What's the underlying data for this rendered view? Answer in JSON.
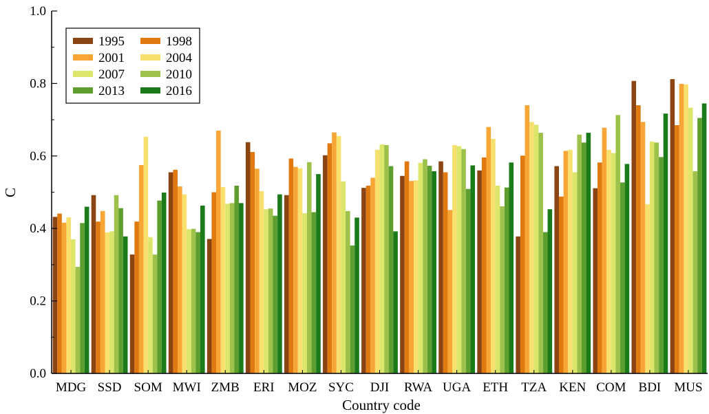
{
  "chart_data": {
    "type": "bar",
    "title": "",
    "xlabel": "Country code",
    "ylabel": "C",
    "ylim": [
      0.0,
      1.0
    ],
    "yticks": [
      "0.0",
      "0.2",
      "0.4",
      "0.6",
      "0.8",
      "1.0"
    ],
    "grid": false,
    "legend_position": "top-left",
    "categories": [
      "MDG",
      "SSD",
      "SOM",
      "MWI",
      "ZMB",
      "ERI",
      "MOZ",
      "SYC",
      "DJI",
      "RWA",
      "UGA",
      "ETH",
      "TZA",
      "KEN",
      "COM",
      "BDI",
      "MUS"
    ],
    "series": [
      {
        "name": "1995",
        "color": "#8B4513",
        "values": [
          0.432,
          0.492,
          0.328,
          0.555,
          0.371,
          0.638,
          0.492,
          0.602,
          0.512,
          0.545,
          0.585,
          0.56,
          0.378,
          0.572,
          0.511,
          0.807,
          0.812
        ]
      },
      {
        "name": "1998",
        "color": "#E07A10",
        "values": [
          0.441,
          0.419,
          0.419,
          0.562,
          0.5,
          0.611,
          0.593,
          0.635,
          0.518,
          0.585,
          0.555,
          0.596,
          0.601,
          0.488,
          0.582,
          0.74,
          0.685
        ]
      },
      {
        "name": "2001",
        "color": "#F7A535",
        "values": [
          0.416,
          0.448,
          0.575,
          0.516,
          0.67,
          0.565,
          0.57,
          0.665,
          0.54,
          0.531,
          0.451,
          0.68,
          0.74,
          0.614,
          0.678,
          0.694,
          0.799
        ]
      },
      {
        "name": "2004",
        "color": "#F8E06E",
        "values": [
          0.431,
          0.389,
          0.653,
          0.494,
          0.514,
          0.503,
          0.566,
          0.655,
          0.617,
          0.533,
          0.63,
          0.647,
          0.694,
          0.617,
          0.617,
          0.467,
          0.797
        ]
      },
      {
        "name": "2007",
        "color": "#DDE56B",
        "values": [
          0.37,
          0.392,
          0.376,
          0.398,
          0.468,
          0.453,
          0.442,
          0.53,
          0.632,
          0.581,
          0.627,
          0.518,
          0.686,
          0.555,
          0.608,
          0.64,
          0.733
        ]
      },
      {
        "name": "2010",
        "color": "#9DC24C",
        "values": [
          0.294,
          0.492,
          0.328,
          0.399,
          0.47,
          0.455,
          0.583,
          0.448,
          0.63,
          0.591,
          0.619,
          0.461,
          0.664,
          0.659,
          0.713,
          0.637,
          0.558
        ]
      },
      {
        "name": "2013",
        "color": "#5E9E2E",
        "values": [
          0.415,
          0.456,
          0.477,
          0.39,
          0.518,
          0.435,
          0.445,
          0.353,
          0.572,
          0.573,
          0.509,
          0.513,
          0.39,
          0.637,
          0.527,
          0.597,
          0.705
        ]
      },
      {
        "name": "2016",
        "color": "#1B7B1B",
        "values": [
          0.46,
          0.378,
          0.499,
          0.463,
          0.47,
          0.494,
          0.55,
          0.43,
          0.392,
          0.558,
          0.574,
          0.582,
          0.453,
          0.664,
          0.578,
          0.717,
          0.745
        ]
      }
    ]
  }
}
